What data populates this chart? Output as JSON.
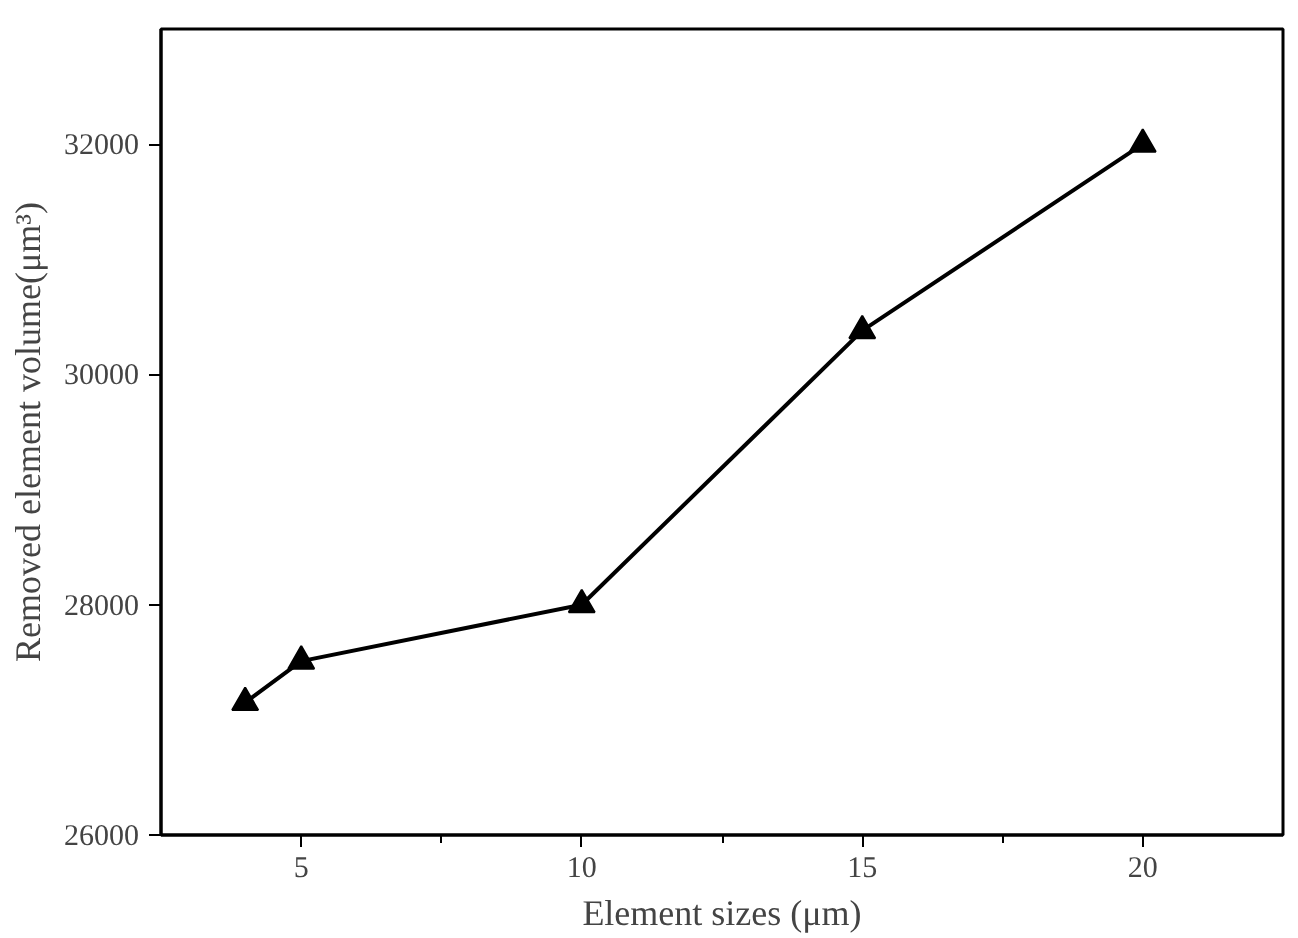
{
  "chart_data": {
    "type": "line",
    "xlabel": "Element sizes (μm)",
    "ylabel": "Removed element volume(μm³)",
    "x": [
      4,
      5,
      10,
      15,
      20
    ],
    "series": [
      {
        "color": "#000000",
        "values": [
          27150,
          27510,
          28000,
          30380,
          32000
        ]
      }
    ],
    "xlim": [
      2.5,
      22.5
    ],
    "xticks": [
      5,
      10,
      15,
      20
    ],
    "ylim": [
      26000,
      33000
    ],
    "yticks": [
      26000,
      28000,
      30000,
      32000
    ],
    "marker": "triangle",
    "line_style": "solid",
    "grid": false
  }
}
